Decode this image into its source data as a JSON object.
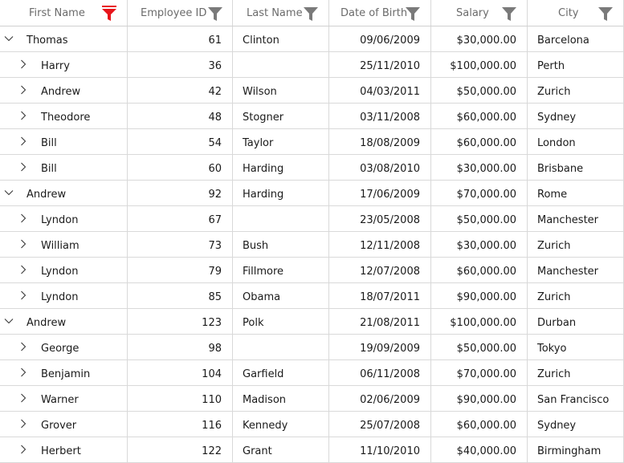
{
  "columns": [
    {
      "key": "first",
      "label": "First Name",
      "filter_active": true
    },
    {
      "key": "id",
      "label": "Employee ID",
      "filter_active": false
    },
    {
      "key": "last",
      "label": "Last Name",
      "filter_active": false
    },
    {
      "key": "dob",
      "label": "Date of Birth",
      "filter_active": false
    },
    {
      "key": "salary",
      "label": "Salary",
      "filter_active": false
    },
    {
      "key": "city",
      "label": "City",
      "filter_active": false
    }
  ],
  "colors": {
    "filter_active": "#e8141b",
    "filter_inactive": "#7a7a7a",
    "grid_line": "#d9d9d9",
    "header_text": "#6b6b6b"
  },
  "rows": [
    {
      "level": 0,
      "expanded": true,
      "first": "Thomas",
      "id": "61",
      "last": "Clinton",
      "dob": "09/06/2009",
      "salary": "$30,000.00",
      "city": "Barcelona"
    },
    {
      "level": 1,
      "expanded": false,
      "first": "Harry",
      "id": "36",
      "last": "",
      "dob": "25/11/2010",
      "salary": "$100,000.00",
      "city": "Perth"
    },
    {
      "level": 1,
      "expanded": false,
      "first": "Andrew",
      "id": "42",
      "last": "Wilson",
      "dob": "04/03/2011",
      "salary": "$50,000.00",
      "city": "Zurich"
    },
    {
      "level": 1,
      "expanded": false,
      "first": "Theodore",
      "id": "48",
      "last": "Stogner",
      "dob": "03/11/2008",
      "salary": "$60,000.00",
      "city": "Sydney"
    },
    {
      "level": 1,
      "expanded": false,
      "first": "Bill",
      "id": "54",
      "last": "Taylor",
      "dob": "18/08/2009",
      "salary": "$60,000.00",
      "city": "London"
    },
    {
      "level": 1,
      "expanded": false,
      "first": "Bill",
      "id": "60",
      "last": "Harding",
      "dob": "03/08/2010",
      "salary": "$30,000.00",
      "city": "Brisbane"
    },
    {
      "level": 0,
      "expanded": true,
      "first": "Andrew",
      "id": "92",
      "last": "Harding",
      "dob": "17/06/2009",
      "salary": "$70,000.00",
      "city": "Rome"
    },
    {
      "level": 1,
      "expanded": false,
      "first": "Lyndon",
      "id": "67",
      "last": "",
      "dob": "23/05/2008",
      "salary": "$50,000.00",
      "city": "Manchester"
    },
    {
      "level": 1,
      "expanded": false,
      "first": "William",
      "id": "73",
      "last": "Bush",
      "dob": "12/11/2008",
      "salary": "$30,000.00",
      "city": "Zurich"
    },
    {
      "level": 1,
      "expanded": false,
      "first": "Lyndon",
      "id": "79",
      "last": "Fillmore",
      "dob": "12/07/2008",
      "salary": "$60,000.00",
      "city": "Manchester"
    },
    {
      "level": 1,
      "expanded": false,
      "first": "Lyndon",
      "id": "85",
      "last": "Obama",
      "dob": "18/07/2011",
      "salary": "$90,000.00",
      "city": "Zurich"
    },
    {
      "level": 0,
      "expanded": true,
      "first": "Andrew",
      "id": "123",
      "last": "Polk",
      "dob": "21/08/2011",
      "salary": "$100,000.00",
      "city": "Durban"
    },
    {
      "level": 1,
      "expanded": false,
      "first": "George",
      "id": "98",
      "last": "",
      "dob": "19/09/2009",
      "salary": "$50,000.00",
      "city": "Tokyo"
    },
    {
      "level": 1,
      "expanded": false,
      "first": "Benjamin",
      "id": "104",
      "last": "Garfield",
      "dob": "06/11/2008",
      "salary": "$70,000.00",
      "city": "Zurich"
    },
    {
      "level": 1,
      "expanded": false,
      "first": "Warner",
      "id": "110",
      "last": "Madison",
      "dob": "02/06/2009",
      "salary": "$90,000.00",
      "city": "San Francisco"
    },
    {
      "level": 1,
      "expanded": false,
      "first": "Grover",
      "id": "116",
      "last": "Kennedy",
      "dob": "25/07/2008",
      "salary": "$60,000.00",
      "city": "Sydney"
    },
    {
      "level": 1,
      "expanded": false,
      "first": "Herbert",
      "id": "122",
      "last": "Grant",
      "dob": "11/10/2010",
      "salary": "$40,000.00",
      "city": "Birmingham"
    }
  ]
}
